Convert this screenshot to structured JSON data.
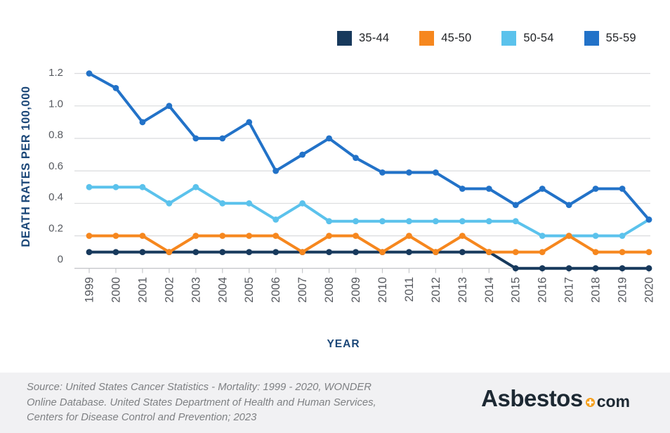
{
  "chart_data": {
    "type": "line",
    "x": [
      1999,
      2000,
      2001,
      2002,
      2003,
      2004,
      2005,
      2006,
      2007,
      2008,
      2009,
      2010,
      2011,
      2012,
      2013,
      2014,
      2015,
      2016,
      2017,
      2018,
      2019,
      2020
    ],
    "series": [
      {
        "name": "35-44",
        "color": "#17395C",
        "values": [
          0.1,
          0.1,
          0.1,
          0.1,
          0.1,
          0.1,
          0.1,
          0.1,
          0.1,
          0.1,
          0.1,
          0.1,
          0.1,
          0.1,
          0.1,
          0.1,
          0,
          0,
          0,
          0,
          0,
          0
        ]
      },
      {
        "name": "45-50",
        "color": "#F6871E",
        "values": [
          0.2,
          0.2,
          0.2,
          0.1,
          0.2,
          0.2,
          0.2,
          0.2,
          0.1,
          0.2,
          0.2,
          0.1,
          0.2,
          0.1,
          0.2,
          0.1,
          0.1,
          0.1,
          0.2,
          0.1,
          0.1,
          0.1
        ]
      },
      {
        "name": "50-54",
        "color": "#5BC2EC",
        "values": [
          0.5,
          0.5,
          0.5,
          0.4,
          0.5,
          0.4,
          0.4,
          0.3,
          0.4,
          0.29,
          0.29,
          0.29,
          0.29,
          0.29,
          0.29,
          0.29,
          0.29,
          0.2,
          0.2,
          0.2,
          0.2,
          0.3
        ]
      },
      {
        "name": "55-59",
        "color": "#2272C8",
        "values": [
          1.2,
          1.11,
          0.9,
          1.0,
          0.8,
          0.8,
          0.9,
          0.6,
          0.7,
          0.8,
          0.68,
          0.59,
          0.59,
          0.59,
          0.49,
          0.49,
          0.39,
          0.49,
          0.39,
          0.49,
          0.49,
          0.3
        ]
      }
    ],
    "draw_order": [
      0,
      2,
      1,
      3
    ],
    "xlabel": "YEAR",
    "ylabel": "DEATH RATES PER 100,000",
    "ylim": [
      0,
      1.2
    ],
    "yticks": [
      0,
      0.2,
      0.4,
      0.6,
      0.8,
      1.0,
      1.2
    ],
    "ytick_labels": [
      "0",
      "0.2",
      "0.4",
      "0.6",
      "0.8",
      "1.0",
      "1.2"
    ],
    "grid": "horizontal",
    "legend_position": "top-right"
  },
  "style": {
    "grid_line": "#DADBDD",
    "axis_line": "#C6C8CB",
    "tick_color": "#56595F",
    "axis_title_color": "#1B4778",
    "background": "#FFFFFF",
    "footer_background": "#F1F1F3"
  },
  "footer": {
    "source_lines": [
      "Source: United States Cancer Statistics - Mortality: 1999 - 2020, WONDER",
      "Online Database. United States Department of Health and Human Services,",
      "Centers for Disease Control and Prevention; 2023"
    ],
    "logo": {
      "name": "Asbestos",
      "tld": "com",
      "badge": "plus",
      "badge_color": "#F6A01D",
      "text_color": "#1D2933"
    }
  }
}
